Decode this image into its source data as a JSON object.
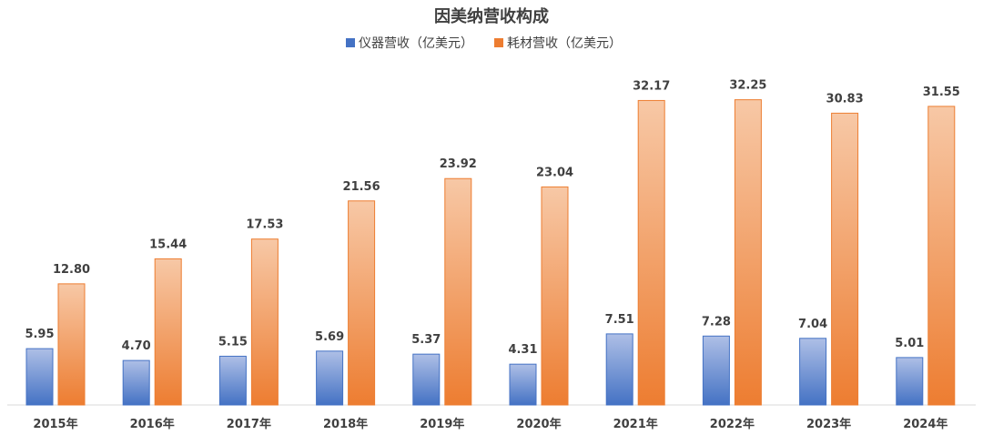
{
  "chart_data": {
    "type": "bar",
    "title": "因美纳营收构成",
    "xlabel": "",
    "ylabel": "",
    "ylim": [
      0,
      34
    ],
    "grid": false,
    "legend_position": "top-center",
    "categories": [
      "2015年",
      "2016年",
      "2017年",
      "2018年",
      "2019年",
      "2020年",
      "2021年",
      "2022年",
      "2023年",
      "2024年"
    ],
    "series": [
      {
        "name": "仪器营收（亿美元）",
        "color": "#4472C4",
        "values": [
          5.95,
          4.7,
          5.15,
          5.69,
          5.37,
          4.31,
          7.51,
          7.28,
          7.04,
          5.01
        ],
        "labels": [
          "5.95",
          "4.70",
          "5.15",
          "5.69",
          "5.37",
          "4.31",
          "7.51",
          "7.28",
          "7.04",
          "5.01"
        ]
      },
      {
        "name": "耗材营收（亿美元）",
        "color": "#ED7D31",
        "values": [
          12.8,
          15.44,
          17.53,
          21.56,
          23.92,
          23.04,
          32.17,
          32.25,
          30.83,
          31.55
        ],
        "labels": [
          "12.80",
          "15.44",
          "17.53",
          "21.56",
          "23.92",
          "23.04",
          "32.17",
          "32.25",
          "30.83",
          "31.55"
        ]
      }
    ]
  }
}
